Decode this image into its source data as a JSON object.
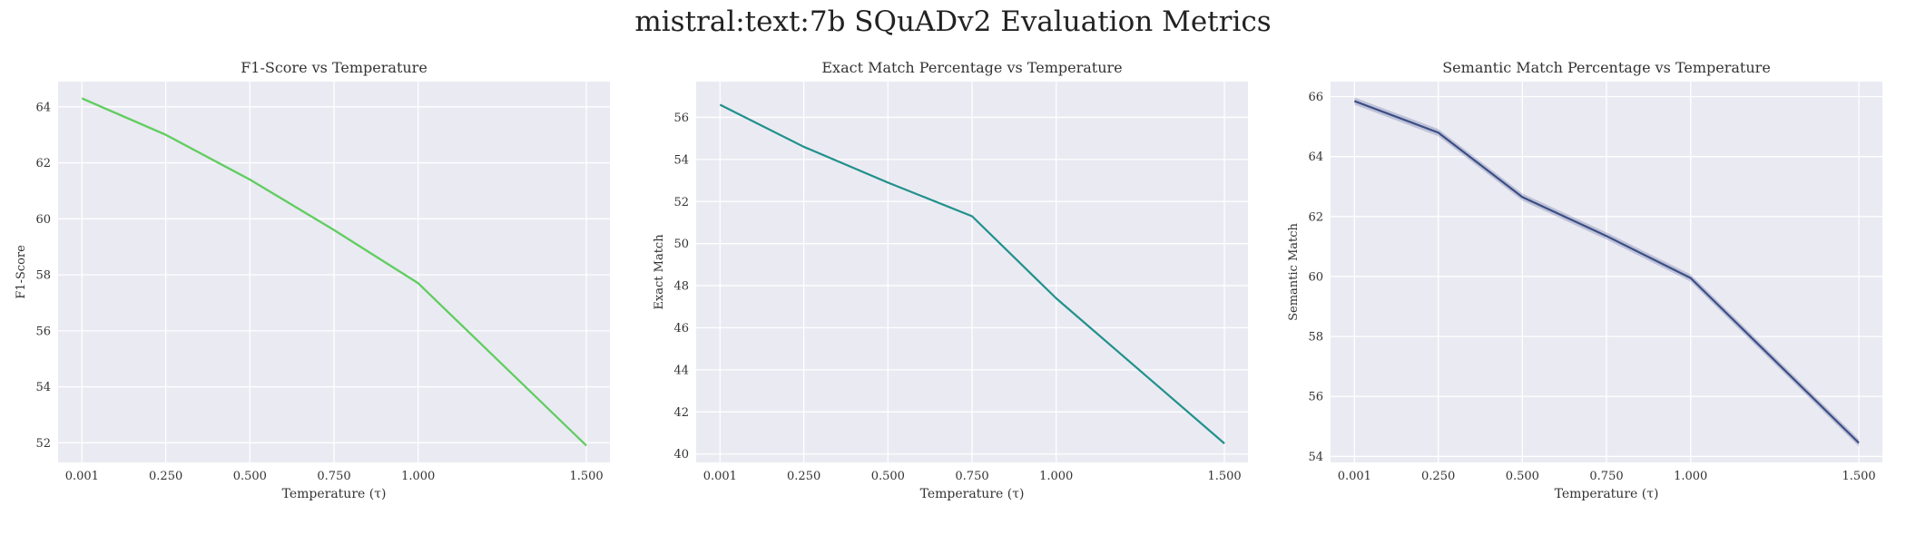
{
  "figure": {
    "title": "mistral:text:7b SQuADv2 Evaluation Metrics"
  },
  "chart_data": [
    {
      "type": "line",
      "title": "F1-Score vs Temperature",
      "xlabel": "Temperature (τ)",
      "ylabel": "F1-Score",
      "x": [
        0.001,
        0.25,
        0.5,
        0.75,
        1.0,
        1.5
      ],
      "xticks": [
        "0.001",
        "0.250",
        "0.500",
        "0.750",
        "1.000",
        "1.500"
      ],
      "xlim": [
        -0.07,
        1.57
      ],
      "ylim": [
        51.3,
        64.9
      ],
      "yticks": [
        52,
        54,
        56,
        58,
        60,
        62,
        64
      ],
      "grid": true,
      "series": [
        {
          "values": [
            64.3,
            63.0,
            61.4,
            59.6,
            57.7,
            51.9
          ],
          "color": "#5fcd5f",
          "band": 0.05
        }
      ]
    },
    {
      "type": "line",
      "title": "Exact Match Percentage vs Temperature",
      "xlabel": "Temperature (τ)",
      "ylabel": "Exact Match",
      "x": [
        0.001,
        0.25,
        0.5,
        0.75,
        1.0,
        1.5
      ],
      "xticks": [
        "0.001",
        "0.250",
        "0.500",
        "0.750",
        "1.000",
        "1.500"
      ],
      "xlim": [
        -0.07,
        1.57
      ],
      "ylim": [
        39.6,
        57.7
      ],
      "yticks": [
        40,
        42,
        44,
        46,
        48,
        50,
        52,
        54,
        56
      ],
      "grid": true,
      "series": [
        {
          "values": [
            56.6,
            54.6,
            52.9,
            51.3,
            47.4,
            40.5
          ],
          "color": "#21918c",
          "band": 0.05
        }
      ]
    },
    {
      "type": "line",
      "title": "Semantic Match Percentage vs Temperature",
      "xlabel": "Temperature (τ)",
      "ylabel": "Semantic Match",
      "x": [
        0.001,
        0.25,
        0.5,
        0.75,
        1.0,
        1.5
      ],
      "xticks": [
        "0.001",
        "0.250",
        "0.500",
        "0.750",
        "1.000",
        "1.500"
      ],
      "xlim": [
        -0.07,
        1.57
      ],
      "ylim": [
        53.8,
        66.5
      ],
      "yticks": [
        54,
        56,
        58,
        60,
        62,
        64,
        66
      ],
      "grid": true,
      "series": [
        {
          "values": [
            65.85,
            64.8,
            62.65,
            61.35,
            59.95,
            54.45
          ],
          "color": "#3b4d86",
          "band": 0.12
        }
      ]
    }
  ]
}
